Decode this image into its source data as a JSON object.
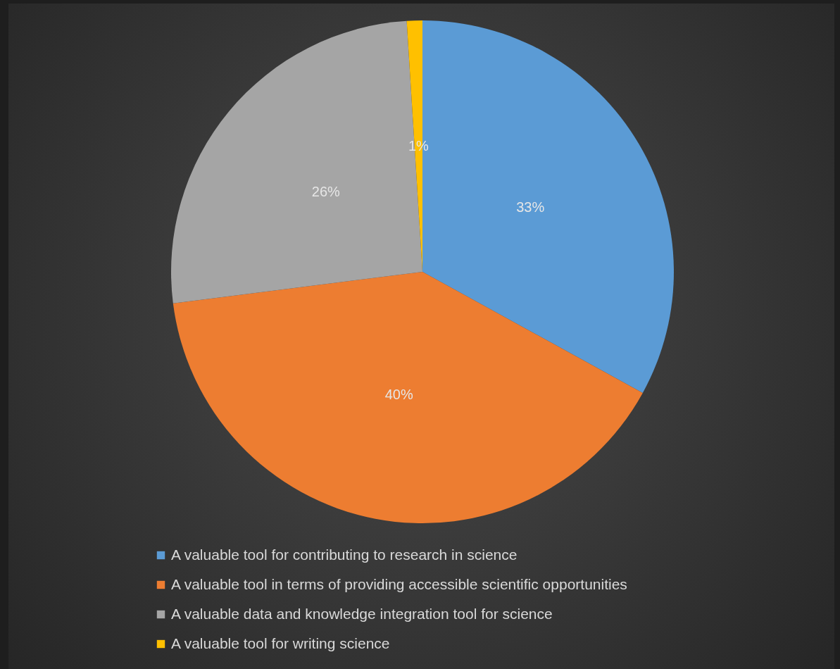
{
  "chart_data": {
    "type": "pie",
    "categories": [
      "A valuable tool for contributing to research in science",
      "A valuable tool in terms of providing accessible scientific opportunities",
      "A valuable data and knowledge integration tool for science",
      "A valuable tool for writing science"
    ],
    "values": [
      33,
      40,
      26,
      1
    ],
    "value_labels": [
      "33%",
      "40%",
      "26%",
      "1%"
    ],
    "colors": [
      "#5b9bd5",
      "#ed7d31",
      "#a5a5a5",
      "#ffc000"
    ],
    "legend": "bottom"
  }
}
